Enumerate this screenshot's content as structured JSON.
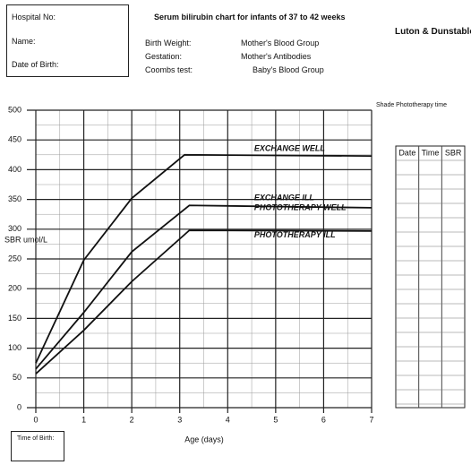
{
  "form": {
    "hospital_no": "Hospital No:",
    "name": "Name:",
    "date_of_birth": "Date of Birth:",
    "birth_weight": "Birth Weight:",
    "gestation": "Gestation:",
    "coombs": "Coombs test:",
    "mothers_blood_group": "Mother's Blood Group",
    "mothers_antibodies": "Mother's Antibodies",
    "babys_blood_group": "Baby's Blood Group",
    "hospital": "Luton & Dunstable",
    "shade_note": "Shade Phototherapy time",
    "time_of_birth": "Time of Birth:"
  },
  "table": {
    "headers": [
      "Date",
      "Time",
      "SBR"
    ]
  },
  "chart_data": {
    "type": "line",
    "title": "Serum bilirubin chart for infants of 37 to 42 weeks",
    "x_label": "Age (days)",
    "y_label": "SBR umol/L",
    "xlim": [
      0,
      7
    ],
    "xticks": [
      0,
      1,
      2,
      3,
      4,
      5,
      6,
      7
    ],
    "ylim": [
      0,
      500
    ],
    "yticks": [
      0,
      50,
      100,
      150,
      200,
      250,
      300,
      350,
      400,
      450,
      500
    ],
    "grid": true,
    "series": [
      {
        "name": "EXCHANGE WELL",
        "color": "#111111",
        "x": [
          0,
          1,
          2,
          3.1,
          7
        ],
        "values": [
          75,
          248,
          352,
          425,
          423
        ]
      },
      {
        "name": "PHOTOTHERAPY WELL",
        "color": "#111111",
        "x": [
          0,
          1,
          2,
          3.2,
          7
        ],
        "values": [
          65,
          160,
          262,
          340,
          336
        ]
      },
      {
        "name": "PHOTOTHERAPY ILL",
        "color": "#111111",
        "x": [
          0,
          1,
          2,
          3.2,
          7
        ],
        "values": [
          57,
          130,
          212,
          298,
          297
        ]
      }
    ],
    "annotations": [
      "EXCHANGE ILL"
    ]
  }
}
